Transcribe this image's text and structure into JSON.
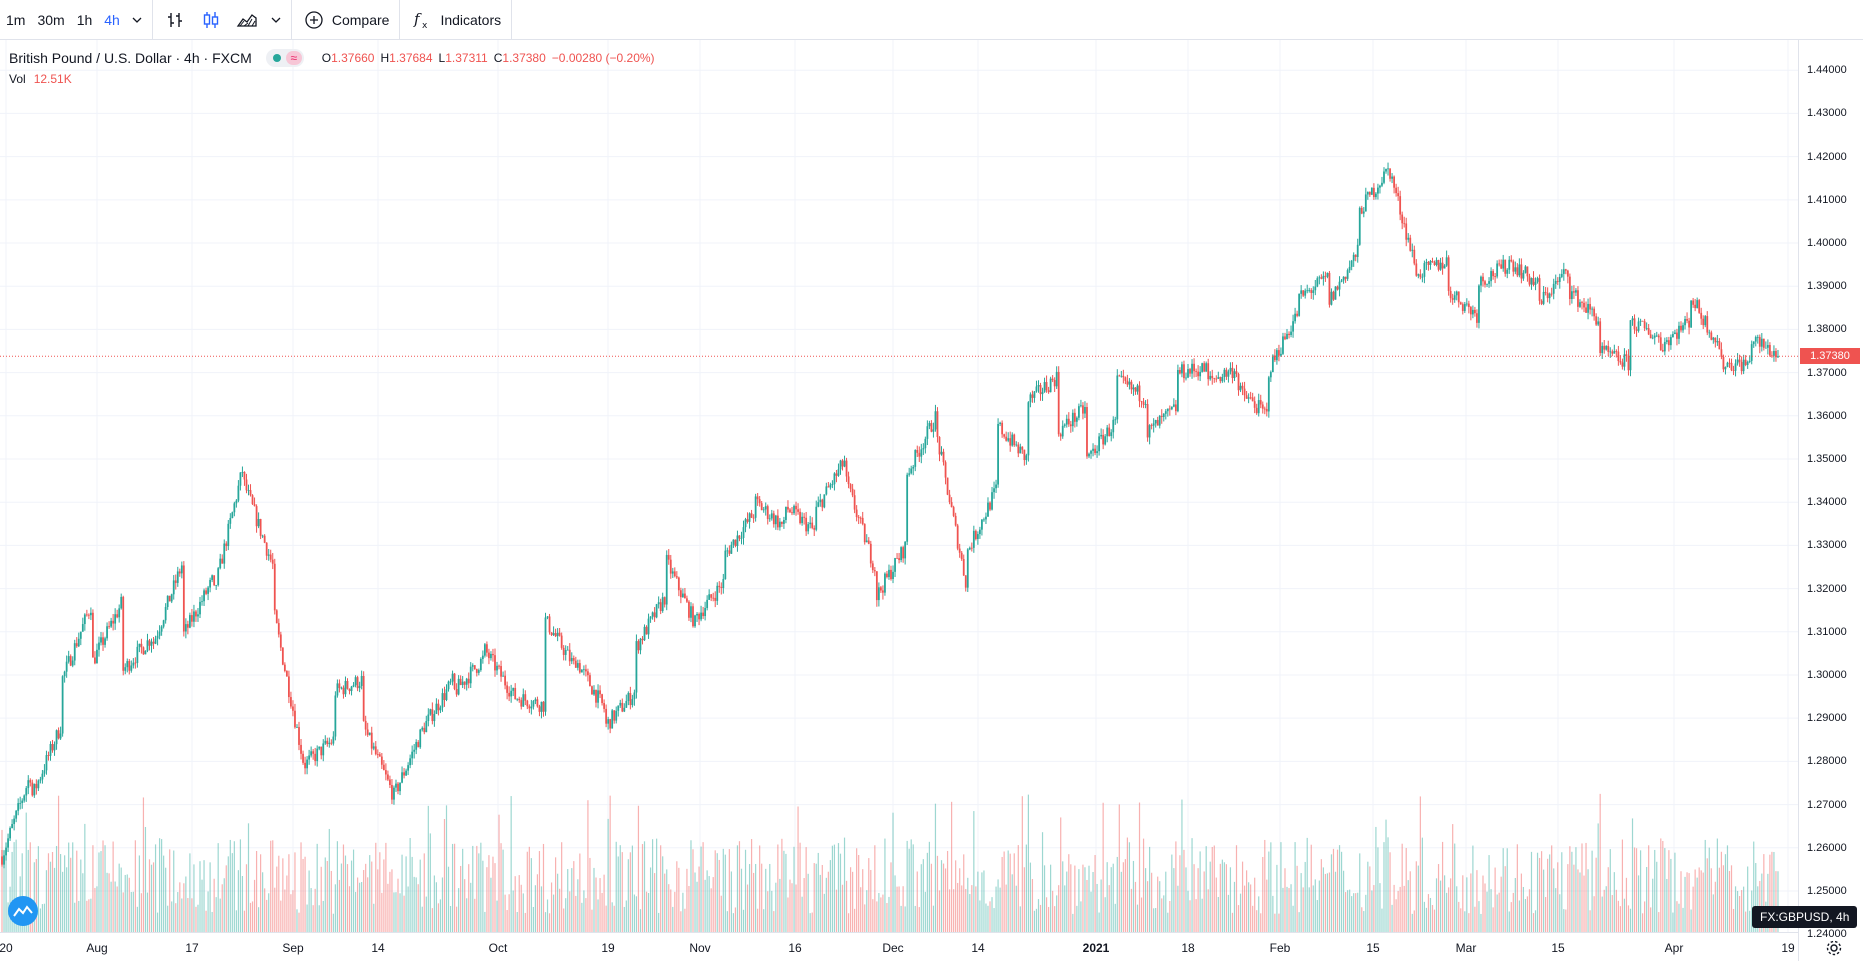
{
  "toolbar": {
    "intervals": [
      "1m",
      "30m",
      "1h",
      "4h"
    ],
    "active_interval": "4h",
    "compare_label": "Compare",
    "indicators_label": "Indicators"
  },
  "legend": {
    "symbol": "British Pound / U.S. Dollar · 4h · FXCM",
    "open": "1.37660",
    "high": "1.37684",
    "low": "1.37311",
    "close": "1.37380",
    "change": "−0.00280 (−0.20%)"
  },
  "volume": {
    "label": "Vol",
    "value": "12.51K"
  },
  "last_price_label": "1.37380",
  "symbol_badge": "FX:GBPUSD, 4h",
  "colors": {
    "up": "#26a69a",
    "down": "#ef5350",
    "accent": "#2962ff"
  },
  "icons": [
    "bar-chart-icon",
    "candles-icon",
    "area-chart-icon",
    "plus-circle-icon",
    "fx-icon",
    "logo-icon",
    "gear-icon"
  ],
  "chart_data": {
    "type": "candlestick",
    "ylim": [
      1.2405,
      1.447
    ],
    "yticks": [
      "1.44000",
      "1.43000",
      "1.42000",
      "1.41000",
      "1.40000",
      "1.39000",
      "1.38000",
      "1.37000",
      "1.36000",
      "1.35000",
      "1.34000",
      "1.33000",
      "1.32000",
      "1.31000",
      "1.30000",
      "1.29000",
      "1.28000",
      "1.27000",
      "1.26000",
      "1.25000",
      "1.24000"
    ],
    "xticks": [
      "20",
      "Aug",
      "17",
      "Sep",
      "14",
      "Oct",
      "19",
      "Nov",
      "16",
      "Dec",
      "14",
      "2021",
      "18",
      "Feb",
      "15",
      "Mar",
      "15",
      "Apr",
      "19"
    ],
    "bold_xtick": "2021",
    "last_price": 1.3738,
    "path_knots": [
      [
        1.258,
        1.278
      ],
      [
        1.272,
        1.289
      ],
      [
        1.299,
        1.317
      ],
      [
        1.303,
        1.317
      ],
      [
        1.301,
        1.309
      ],
      [
        1.307,
        1.326
      ],
      [
        1.309,
        1.322
      ],
      [
        1.318,
        1.348
      ],
      [
        1.345,
        1.325
      ],
      [
        1.315,
        1.28
      ],
      [
        1.279,
        1.285
      ],
      [
        1.296,
        1.299
      ],
      [
        1.288,
        1.272
      ],
      [
        1.272,
        1.288
      ],
      [
        1.288,
        1.299
      ],
      [
        1.296,
        1.304
      ],
      [
        1.306,
        1.295
      ],
      [
        1.295,
        1.293
      ],
      [
        1.313,
        1.302
      ],
      [
        1.304,
        1.292
      ],
      [
        1.288,
        1.296
      ],
      [
        1.306,
        1.318
      ],
      [
        1.327,
        1.312
      ],
      [
        1.313,
        1.322
      ],
      [
        1.328,
        1.338
      ],
      [
        1.34,
        1.334
      ],
      [
        1.339,
        1.333
      ],
      [
        1.338,
        1.35
      ],
      [
        1.345,
        1.324
      ],
      [
        1.318,
        1.33
      ],
      [
        1.346,
        1.36
      ],
      [
        1.356,
        1.321
      ],
      [
        1.328,
        1.343
      ],
      [
        1.358,
        1.35
      ],
      [
        1.363,
        1.369
      ],
      [
        1.356,
        1.362
      ],
      [
        1.35,
        1.359
      ],
      [
        1.368,
        1.364
      ],
      [
        1.356,
        1.362
      ],
      [
        1.37,
        1.371
      ],
      [
        1.368,
        1.371
      ],
      [
        1.366,
        1.36
      ],
      [
        1.37,
        1.384
      ],
      [
        1.387,
        1.392
      ],
      [
        1.386,
        1.398
      ],
      [
        1.407,
        1.417
      ],
      [
        1.418,
        1.392
      ],
      [
        1.393,
        1.396
      ],
      [
        1.389,
        1.383
      ],
      [
        1.391,
        1.395
      ],
      [
        1.396,
        1.39
      ],
      [
        1.386,
        1.394
      ],
      [
        1.389,
        1.382
      ],
      [
        1.375,
        1.372
      ],
      [
        1.382,
        1.378
      ],
      [
        1.376,
        1.382
      ],
      [
        1.388,
        1.376
      ],
      [
        1.372,
        1.372
      ],
      [
        1.378,
        1.3738
      ]
    ]
  }
}
